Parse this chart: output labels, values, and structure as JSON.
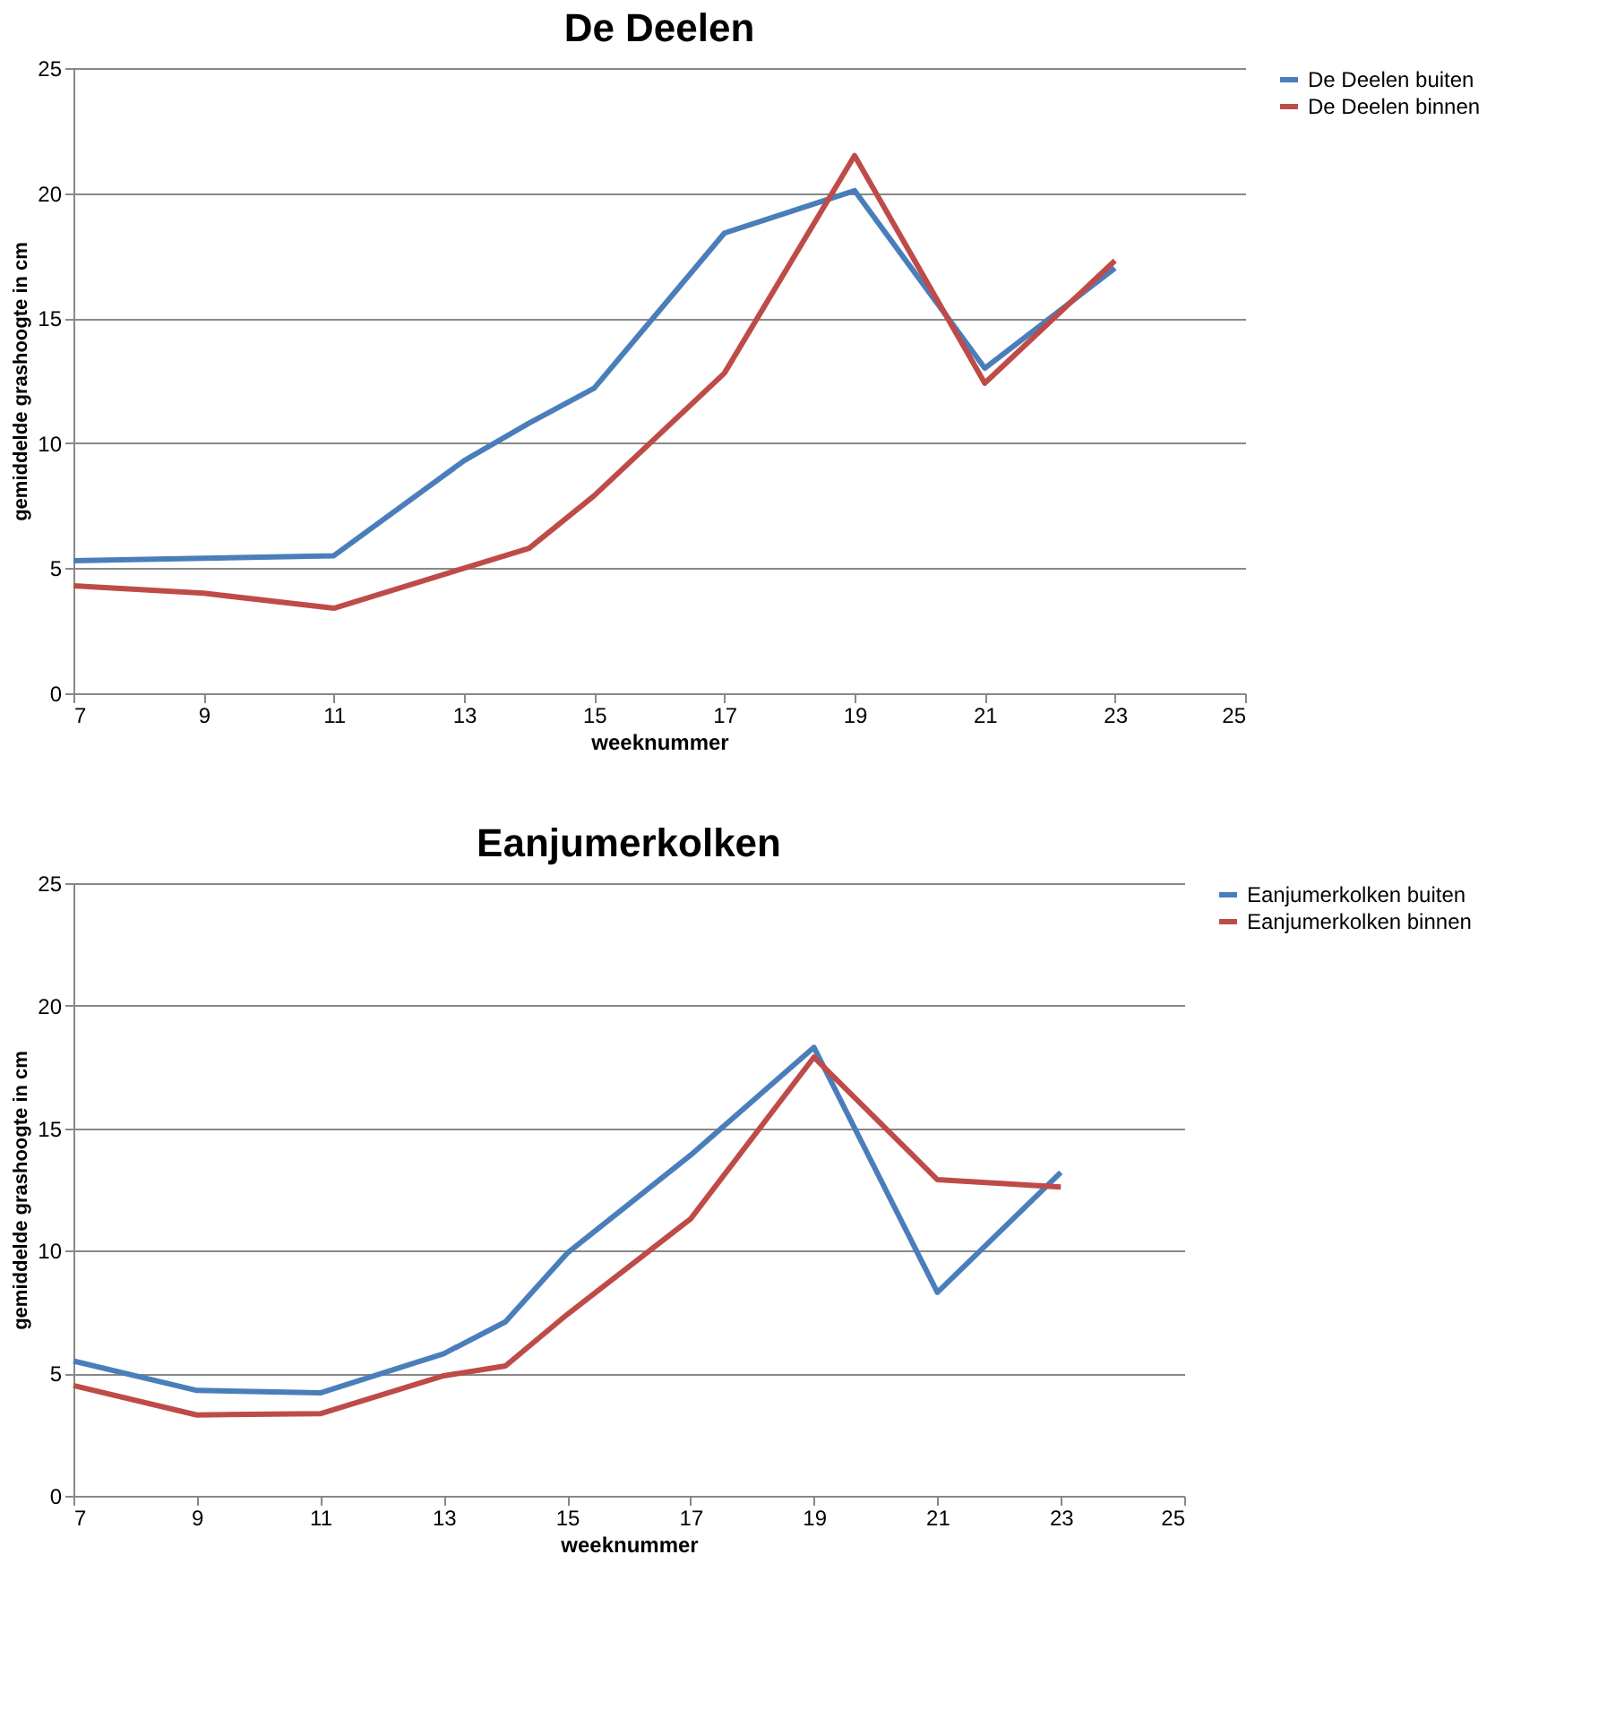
{
  "chart_data": [
    {
      "type": "line",
      "title": "De Deelen",
      "xlabel": "weeknummer",
      "ylabel": "gemiddelde grashoogte in cm",
      "x": [
        7,
        9,
        11,
        13,
        14,
        15,
        17,
        19,
        21,
        23
      ],
      "series": [
        {
          "name": "De Deelen buiten",
          "color": "#4a7ebb",
          "values": [
            5.3,
            5.4,
            5.5,
            9.3,
            10.8,
            12.2,
            18.4,
            20.1,
            13.0,
            17.0
          ]
        },
        {
          "name": "De Deelen binnen",
          "color": "#be4b48",
          "values": [
            4.3,
            4.0,
            3.4,
            5.0,
            5.8,
            7.9,
            12.8,
            21.5,
            12.4,
            17.3
          ]
        }
      ],
      "xlim": [
        7,
        25
      ],
      "xticks": [
        7,
        9,
        11,
        13,
        15,
        17,
        19,
        21,
        23,
        25
      ],
      "ylim": [
        0,
        25
      ],
      "yticks": [
        0,
        5,
        10,
        15,
        20,
        25
      ],
      "grid": "y",
      "legend": "right",
      "marker": "none",
      "line_style": "solid"
    },
    {
      "type": "line",
      "title": "Eanjumerkolken",
      "xlabel": "weeknummer",
      "ylabel": "gemiddelde grashoogte in cm",
      "x": [
        7,
        9,
        11,
        13,
        14,
        15,
        17,
        19,
        21,
        23
      ],
      "series": [
        {
          "name": "Eanjumerkolken buiten",
          "color": "#4a7ebb",
          "values": [
            5.5,
            4.3,
            4.2,
            5.8,
            7.1,
            9.9,
            13.9,
            18.3,
            8.3,
            13.2
          ]
        },
        {
          "name": "Eanjumerkolken binnen",
          "color": "#be4b48",
          "values": [
            4.5,
            3.3,
            3.35,
            4.9,
            5.3,
            7.4,
            11.3,
            17.9,
            12.9,
            12.6
          ]
        }
      ],
      "xlim": [
        7,
        25
      ],
      "xticks": [
        7,
        9,
        11,
        13,
        15,
        17,
        19,
        21,
        23,
        25
      ],
      "ylim": [
        0,
        25
      ],
      "yticks": [
        0,
        5,
        10,
        15,
        20,
        25
      ],
      "grid": "y",
      "legend": "right",
      "marker": "none",
      "line_style": "solid"
    }
  ]
}
